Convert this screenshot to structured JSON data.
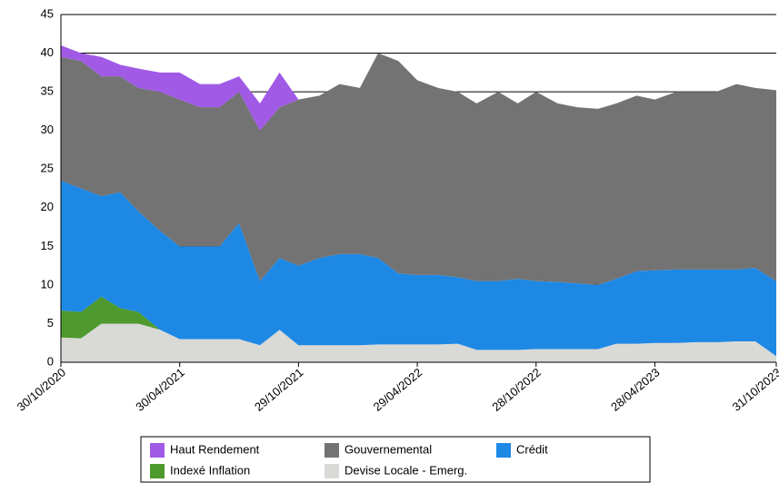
{
  "chart_data": {
    "type": "stacked_area",
    "x": [
      "30/10/2020",
      "30/11/2020",
      "31/12/2020",
      "29/01/2021",
      "26/02/2021",
      "31/03/2021",
      "30/04/2021",
      "31/05/2021",
      "30/06/2021",
      "30/07/2021",
      "31/08/2021",
      "30/09/2021",
      "29/10/2021",
      "30/11/2021",
      "31/12/2021",
      "31/01/2022",
      "28/02/2022",
      "31/03/2022",
      "29/04/2022",
      "31/05/2022",
      "30/06/2022",
      "29/07/2022",
      "31/08/2022",
      "30/09/2022",
      "28/10/2022",
      "30/11/2022",
      "30/12/2022",
      "31/01/2023",
      "28/02/2023",
      "31/03/2023",
      "28/04/2023",
      "31/05/2023",
      "30/06/2023",
      "31/07/2023",
      "31/08/2023",
      "29/09/2023",
      "31/10/2023"
    ],
    "series": [
      {
        "name": "Haut Rendement",
        "color": "#a05ae6",
        "values": [
          1.5,
          1,
          2.5,
          1.5,
          2.5,
          2.5,
          3.5,
          3,
          3,
          2,
          3.5,
          4.5,
          0,
          0,
          0,
          0,
          0,
          0,
          0,
          0,
          0,
          0,
          0,
          0,
          0,
          0,
          0,
          0,
          0,
          0,
          0,
          0,
          0,
          0,
          0,
          0,
          0
        ]
      },
      {
        "name": "Gouvernemental",
        "color": "#737373",
        "values": [
          16,
          16.5,
          15.5,
          15,
          16,
          18,
          19,
          18,
          18,
          17,
          19.5,
          19.5,
          21.5,
          21,
          22,
          21.5,
          26.5,
          27.5,
          25.2,
          24.2,
          24,
          23,
          24.5,
          22.7,
          24.5,
          23.1,
          22.8,
          22.8,
          22.7,
          22.7,
          22.1,
          23,
          23,
          23,
          24,
          23.3,
          24.7
        ]
      },
      {
        "name": "Crédit",
        "color": "#1e88e5",
        "values": [
          16.8,
          16,
          13,
          15,
          13,
          12.8,
          12,
          12,
          12,
          15,
          8.3,
          9.3,
          10.3,
          11.3,
          11.8,
          11.8,
          11.2,
          9.2,
          9,
          9,
          8.6,
          8.9,
          8.9,
          9.2,
          8.8,
          8.7,
          8.5,
          8.3,
          8.4,
          9.4,
          9.4,
          9.5,
          9.4,
          9.4,
          9.3,
          9.5,
          9.7
        ]
      },
      {
        "name": "Indexé Inflation",
        "color": "#4e9a2e",
        "values": [
          3.5,
          3.4,
          3.5,
          2,
          1.5,
          0,
          0,
          0,
          0,
          0,
          0,
          0,
          0,
          0,
          0,
          0,
          0,
          0,
          0,
          0,
          0,
          0,
          0,
          0,
          0,
          0,
          0,
          0,
          0,
          0,
          0,
          0,
          0,
          0,
          0,
          0,
          0
        ]
      },
      {
        "name": "Devise Locale - Emerg.",
        "color": "#d9d9d6",
        "values": [
          3.2,
          3.1,
          5,
          5,
          5,
          4.2,
          3,
          3,
          3,
          3,
          2.2,
          4.2,
          2.2,
          2.2,
          2.2,
          2.2,
          2.3,
          2.3,
          2.3,
          2.3,
          2.4,
          1.6,
          1.6,
          1.6,
          1.7,
          1.7,
          1.7,
          1.7,
          2.4,
          2.4,
          2.5,
          2.5,
          2.6,
          2.6,
          2.7,
          2.7,
          0.8
        ]
      }
    ],
    "xlim": [
      "30/10/2020",
      "31/10/2023"
    ],
    "xticks": [
      "30/10/2020",
      "30/04/2021",
      "29/10/2021",
      "29/04/2022",
      "28/10/2022",
      "28/04/2023",
      "31/10/2023"
    ],
    "ylim": [
      0,
      45
    ],
    "yticks": [
      0,
      5,
      10,
      15,
      20,
      25,
      30,
      35,
      40,
      45
    ],
    "grid": true
  }
}
